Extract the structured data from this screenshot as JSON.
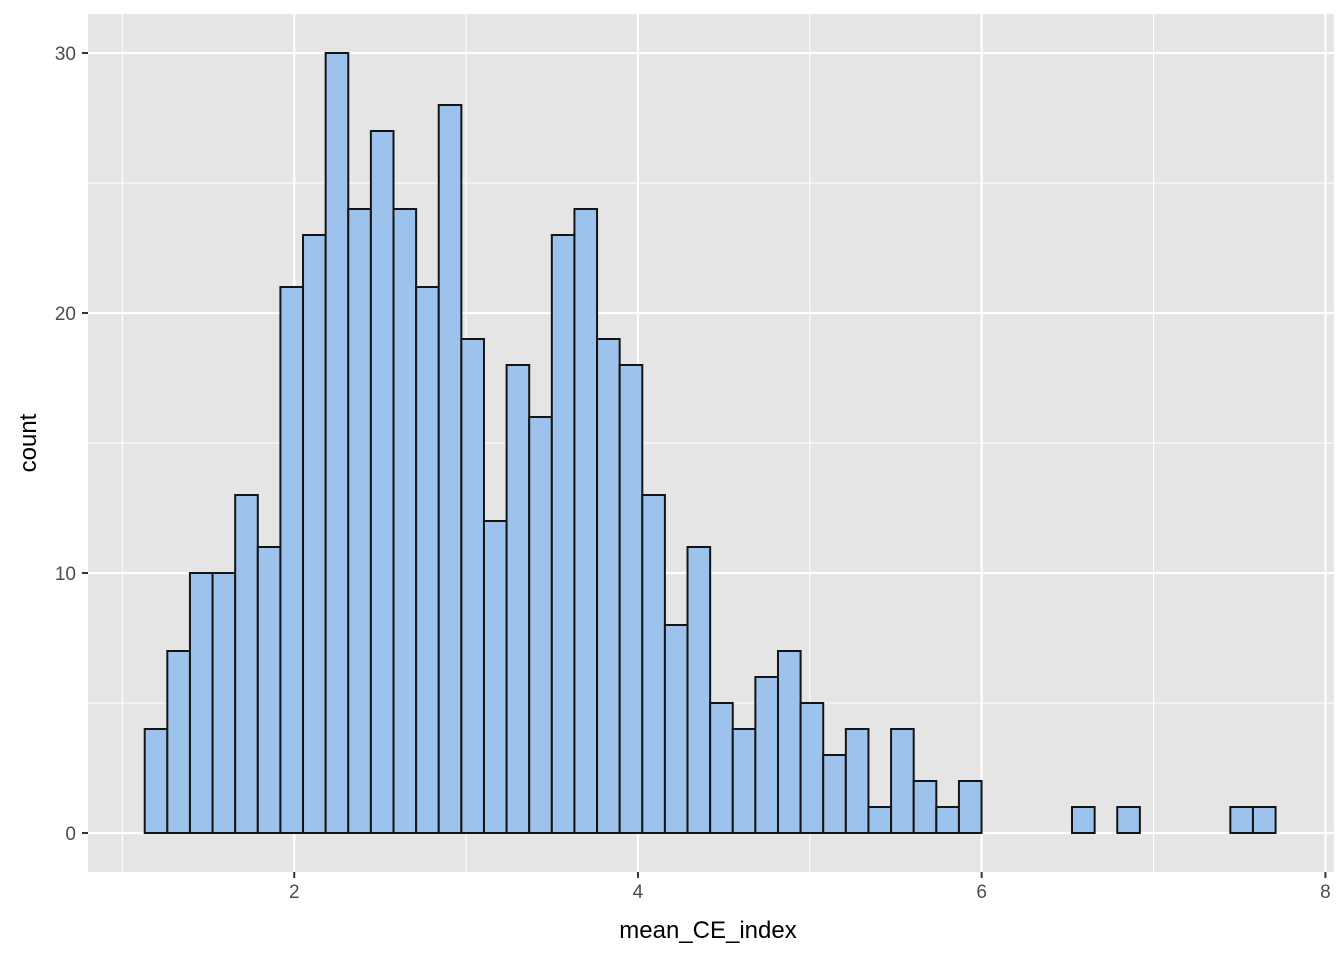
{
  "chart_data": {
    "type": "bar",
    "subtype": "histogram",
    "title": "",
    "xlabel": "mean_CE_index",
    "ylabel": "count",
    "bin_width": 0.1316,
    "bin_starts": [
      1.13,
      1.2616,
      1.3932,
      1.5248,
      1.6564,
      1.788,
      1.9196,
      2.0512,
      2.1828,
      2.3144,
      2.446,
      2.5776,
      2.7092,
      2.8408,
      2.9724,
      3.104,
      3.2356,
      3.3672,
      3.4988,
      3.6304,
      3.762,
      3.8936,
      4.0252,
      4.1568,
      4.2884,
      4.42,
      4.5516,
      4.6832,
      4.8148,
      4.9464,
      5.078,
      5.2096,
      5.3412,
      5.4728,
      5.6044,
      5.736,
      5.8676,
      5.9992,
      6.1308,
      6.2624,
      6.394,
      6.5256,
      6.6572,
      6.7888,
      6.9204,
      7.052,
      7.1836,
      7.3152,
      7.4468,
      7.5784
    ],
    "values": [
      4,
      7,
      10,
      10,
      13,
      11,
      21,
      23,
      30,
      24,
      27,
      24,
      21,
      28,
      19,
      12,
      18,
      16,
      23,
      24,
      19,
      18,
      13,
      8,
      11,
      5,
      4,
      6,
      7,
      5,
      3,
      4,
      1,
      4,
      2,
      1,
      2,
      0,
      0,
      0,
      0,
      1,
      0,
      1,
      0,
      0,
      0,
      0,
      1,
      1
    ],
    "xlim": [
      0.8,
      8.05
    ],
    "ylim": [
      -1.5,
      31.5
    ],
    "x_ticks": [
      2,
      4,
      6,
      8
    ],
    "x_tick_labels": [
      "2",
      "4",
      "6",
      "8"
    ],
    "y_ticks": [
      0,
      10,
      20,
      30
    ],
    "y_tick_labels": [
      "0",
      "10",
      "20",
      "30"
    ],
    "grid": true,
    "legend": "none",
    "colors": {
      "panel_background": "#e5e5e5",
      "grid": "#ffffff",
      "bar_fill": "#9dc3ec",
      "bar_outline": "#141414"
    }
  }
}
